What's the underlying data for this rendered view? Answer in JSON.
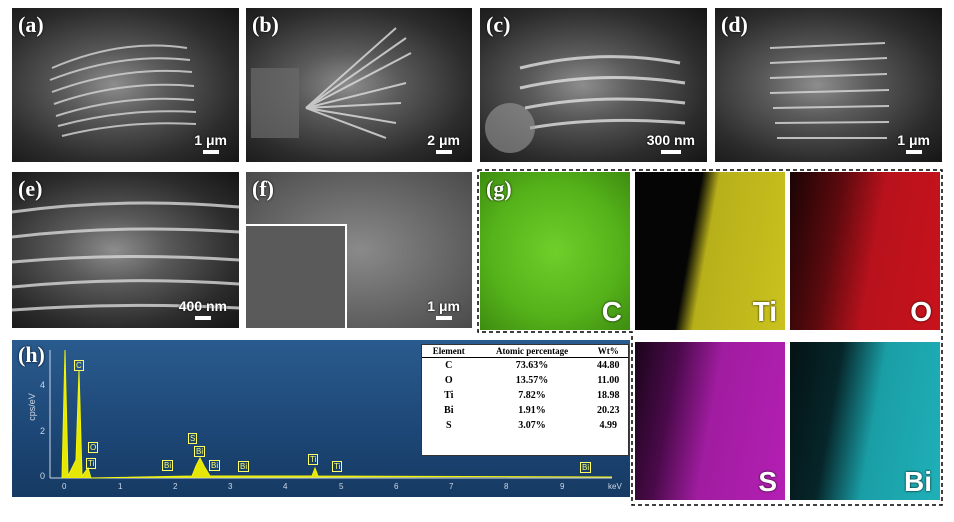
{
  "panels": {
    "a": {
      "label": "(a)",
      "scale": "1 μm"
    },
    "b": {
      "label": "(b)",
      "scale": "2 μm"
    },
    "c": {
      "label": "(c)",
      "scale": "300 nm"
    },
    "d": {
      "label": "(d)",
      "scale": "1 μm"
    },
    "e": {
      "label": "(e)",
      "scale": "400 nm"
    },
    "f": {
      "label": "(f)",
      "scale": "1 μm"
    },
    "g": {
      "label": "(g)"
    },
    "h": {
      "label": "(h)"
    }
  },
  "maps": [
    {
      "element": "C",
      "color": "#55b21a"
    },
    {
      "element": "Ti",
      "color": "#c9c21e"
    },
    {
      "element": "O",
      "color": "#c8121c"
    },
    {
      "element": "S",
      "color": "#b41fb4"
    },
    {
      "element": "Bi",
      "color": "#1fb0b8"
    }
  ],
  "eds": {
    "y_label": "cps/eV",
    "y_ticks": [
      "4",
      "2",
      "0"
    ],
    "x_ticks": [
      "0",
      "1",
      "2",
      "3",
      "4",
      "5",
      "6",
      "7",
      "8",
      "9"
    ],
    "x_unit": "keV",
    "peak_tags": [
      "C",
      "O",
      "Ti",
      "Bi",
      "S",
      "Bi",
      "Bi",
      "Bi",
      "Ti",
      "Ti",
      "Bi"
    ],
    "table": {
      "headers": [
        "Element",
        "Atomic percentage",
        "Wt%"
      ],
      "rows": [
        [
          "C",
          "73.63%",
          "44.80"
        ],
        [
          "O",
          "13.57%",
          "11.00"
        ],
        [
          "Ti",
          "7.82%",
          "18.98"
        ],
        [
          "Bi",
          "1.91%",
          "20.23"
        ],
        [
          "S",
          "3.07%",
          "4.99"
        ]
      ]
    }
  }
}
